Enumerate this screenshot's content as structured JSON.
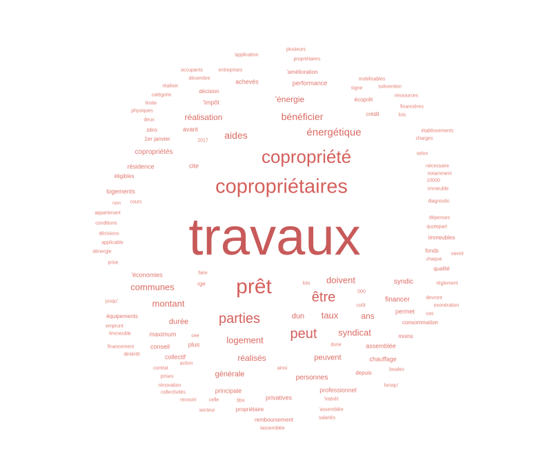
{
  "words": [
    "travaux",
    "copropriétaires",
    "copropriété",
    "prêt",
    "être",
    "parties",
    "peut",
    "énergétique",
    "bénéficier",
    "aides",
    "réalisation",
    "doivent",
    "taux",
    "syndicat",
    "logement",
    "réalisés",
    "montant",
    "communes",
    "durée",
    "ans",
    "dun",
    "peuvent",
    "financer",
    "générale",
    "personnes",
    "syndic",
    "'énergie",
    "copropriétés",
    "avant",
    "cite",
    "résidence",
    "logements",
    "maximum",
    "collectif",
    "conseil",
    "plus",
    "privatives",
    "principale",
    "professionnel",
    "assemblée",
    "chauffage",
    "permet",
    "consommation",
    "moins",
    "depuis",
    "qualité",
    "immeubles",
    "fonds",
    "performance",
    "achevés",
    "décision",
    "'impôt",
    "'amélioration",
    "écoprêt",
    "crédit",
    "'économies",
    "équipements",
    "remboursement",
    "propriétaire",
    "1er janvier",
    "zéro",
    "éligibles",
    "conditions",
    "décisions",
    "dénergie",
    "prise",
    "appartenant",
    "applicable",
    "non",
    "cours",
    "jusqu'",
    "emprunt",
    "limmeuble",
    "financement",
    "dintérêt",
    "contrat",
    "prises",
    "rénovation",
    "collectivités",
    "recourir",
    "celle",
    "titre",
    "secteur",
    "lassemblée",
    "'assemblée",
    "salariés",
    "'intérêt",
    "lorsqu'",
    "locales",
    "dune",
    "ainsi",
    "action",
    "cee",
    "faire",
    "rge",
    "lots",
    "000",
    "coût",
    "cas",
    "exonération",
    "devront",
    "règlement",
    "savoir",
    "chaque",
    "quotepart",
    "dépenses",
    "diagnostic",
    "immeuble",
    "10000",
    "notamment",
    "nécessaire",
    "selon",
    "charges",
    "établissements",
    "financières",
    "lois",
    "ressources",
    "subvention",
    "mobilisables",
    "signe",
    "plusieurs",
    "propriétaires",
    "'application",
    "occupants",
    "entreprises",
    "décembre",
    "réaliser",
    "catégorie",
    "limite",
    "physiques",
    "deux",
    "2017"
  ]
}
